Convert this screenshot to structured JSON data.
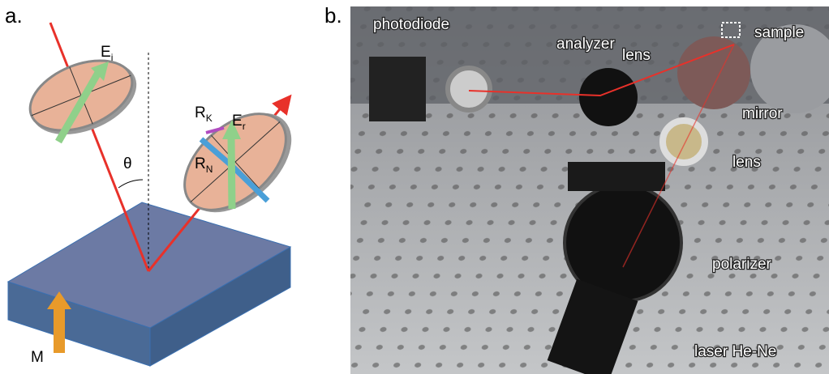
{
  "panel_a": {
    "label": "a.",
    "incident_field": {
      "main": "E",
      "sub": "i"
    },
    "angle": "θ",
    "kerr_component": {
      "main": "R",
      "sub": "K"
    },
    "reflected_field": {
      "main": "E",
      "sub": "r"
    },
    "normal_component": {
      "main": "R",
      "sub": "N"
    },
    "magnetization": "M"
  },
  "panel_b": {
    "label": "b.",
    "labels": [
      "photodiode",
      "analyzer",
      "lens",
      "sample",
      "mirror",
      "lens",
      "polarizer",
      "laser He-Ne"
    ]
  }
}
